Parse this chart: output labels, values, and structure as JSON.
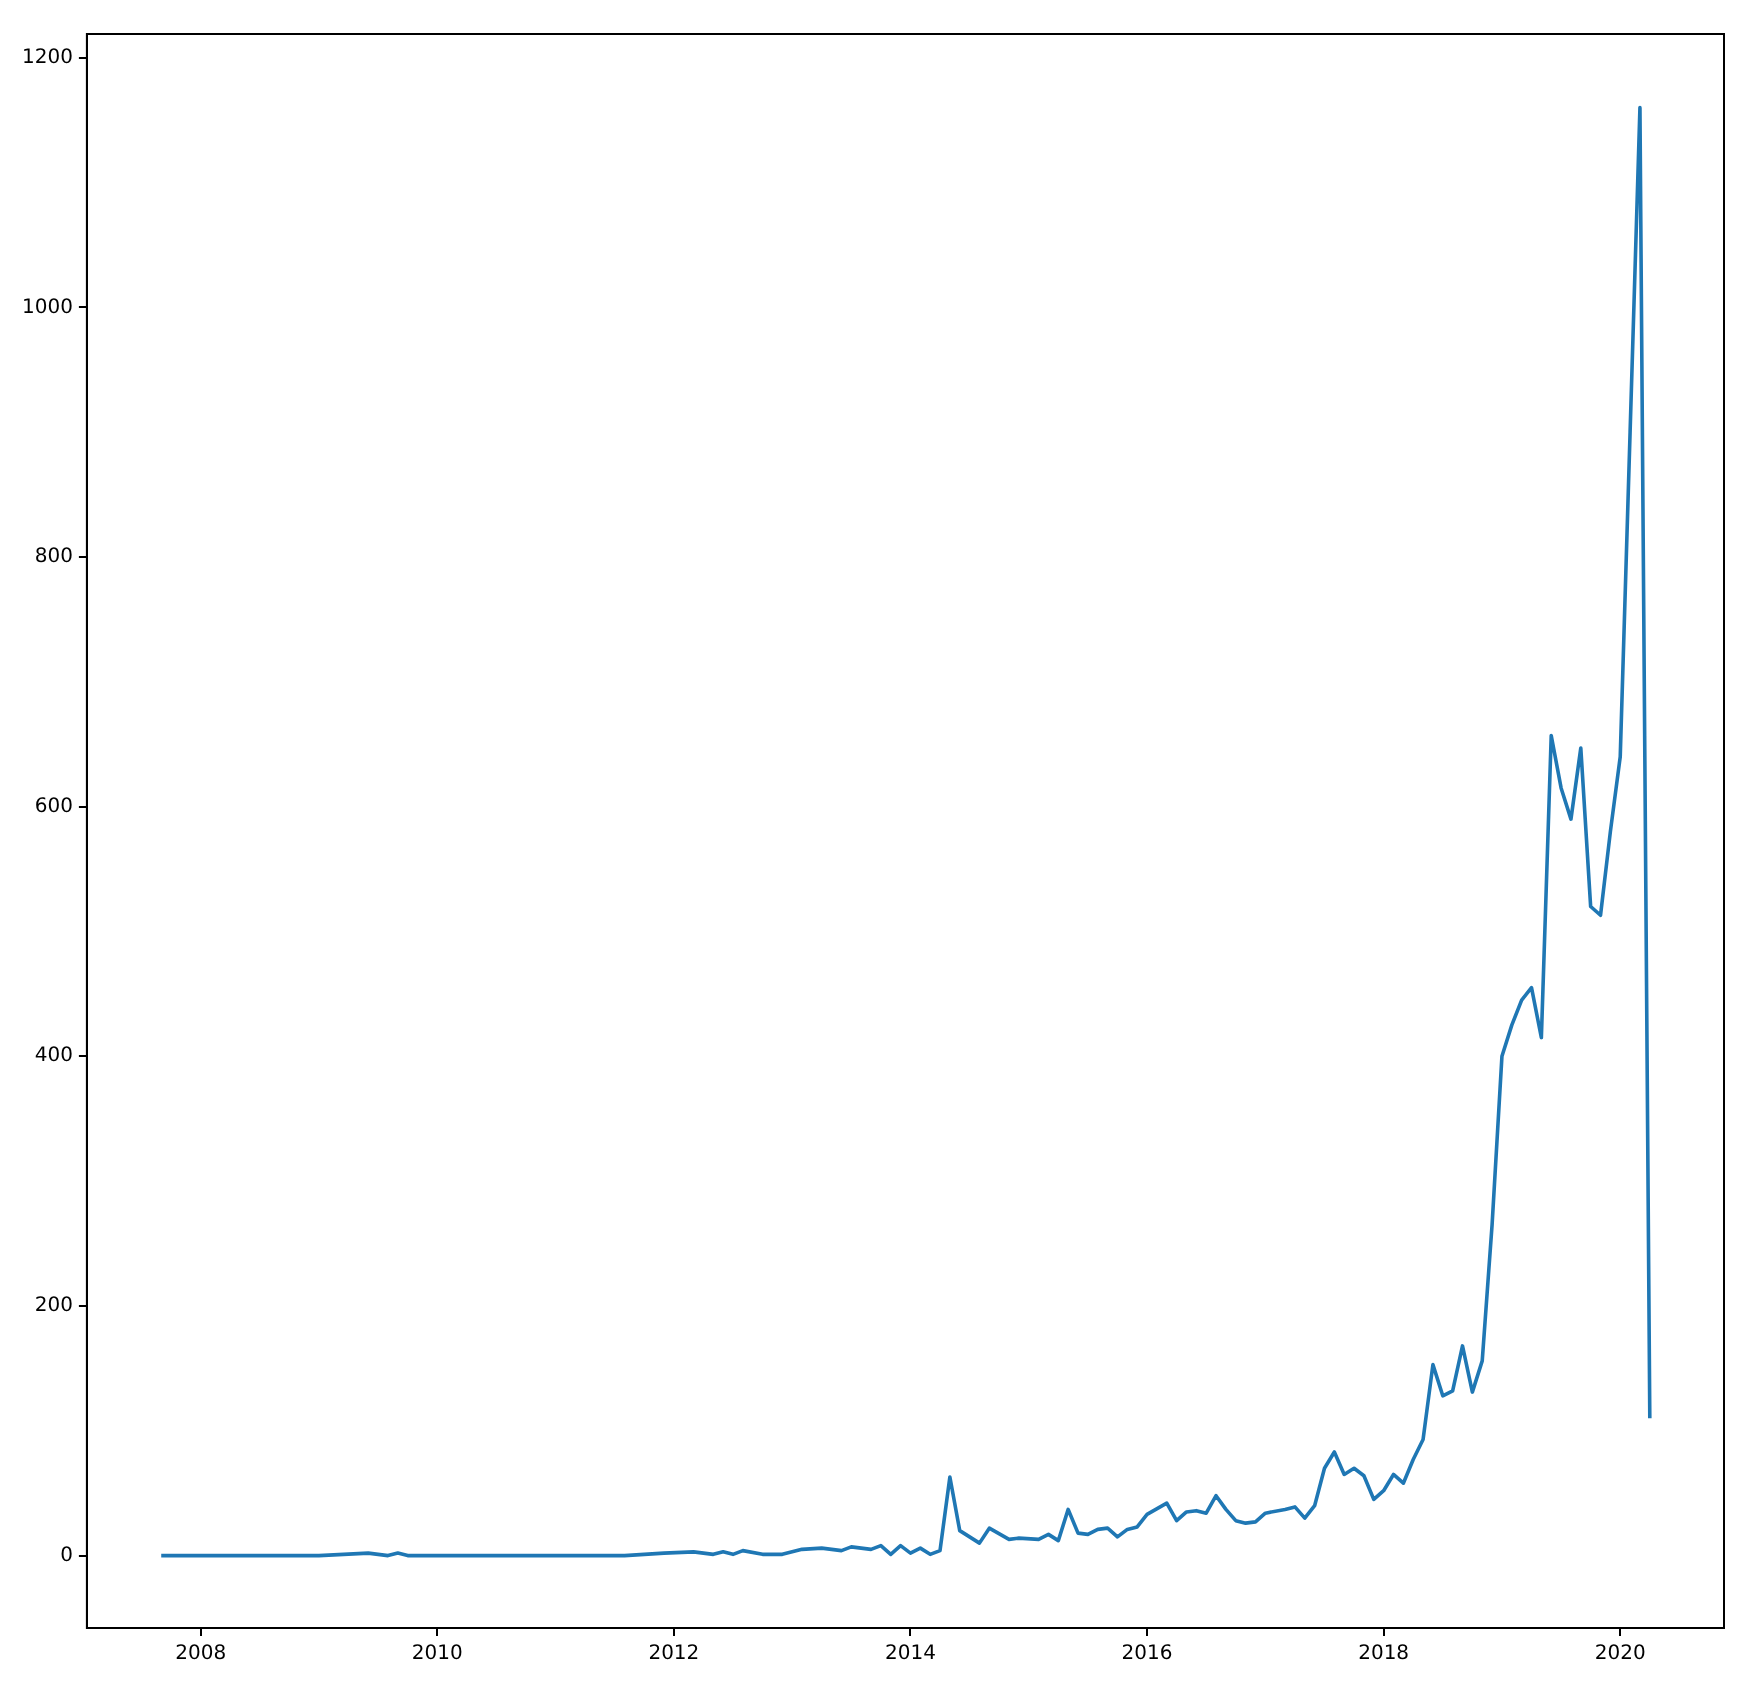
{
  "chart_data": {
    "type": "line",
    "x": [
      "2007-09",
      "2008-06",
      "2009-01",
      "2009-06",
      "2009-08",
      "2009-09",
      "2009-10",
      "2011-08",
      "2011-12",
      "2012-03",
      "2012-05",
      "2012-06",
      "2012-07",
      "2012-08",
      "2012-10",
      "2012-12",
      "2013-02",
      "2013-04",
      "2013-06",
      "2013-07",
      "2013-09",
      "2013-10",
      "2013-11",
      "2013-12",
      "2014-01",
      "2014-02",
      "2014-03",
      "2014-04",
      "2014-05",
      "2014-06",
      "2014-08",
      "2014-09",
      "2014-11",
      "2014-12",
      "2015-02",
      "2015-03",
      "2015-04",
      "2015-05",
      "2015-06",
      "2015-07",
      "2015-08",
      "2015-09",
      "2015-10",
      "2015-11",
      "2015-12",
      "2016-01",
      "2016-03",
      "2016-04",
      "2016-05",
      "2016-06",
      "2016-07",
      "2016-08",
      "2016-09",
      "2016-10",
      "2016-11",
      "2016-12",
      "2017-01",
      "2017-03",
      "2017-04",
      "2017-05",
      "2017-06",
      "2017-07",
      "2017-08",
      "2017-09",
      "2017-10",
      "2017-11",
      "2017-12",
      "2018-01",
      "2018-02",
      "2018-03",
      "2018-04",
      "2018-05",
      "2018-06",
      "2018-07",
      "2018-08",
      "2018-09",
      "2018-10",
      "2018-11",
      "2018-12",
      "2019-01",
      "2019-02",
      "2019-03",
      "2019-04",
      "2019-05",
      "2019-06",
      "2019-07",
      "2019-08",
      "2019-09",
      "2019-10",
      "2019-11",
      "2019-12",
      "2020-01",
      "2020-02",
      "2020-03",
      "2020-04"
    ],
    "series": [
      {
        "color": "#1f77b4",
        "values": [
          0,
          0,
          0,
          2,
          0,
          2,
          0,
          0,
          2,
          3,
          1,
          3,
          1,
          4,
          1,
          1,
          5,
          6,
          4,
          7,
          5,
          8,
          1,
          8,
          2,
          6,
          1,
          4,
          63,
          20,
          10,
          22,
          13,
          14,
          13,
          17,
          12,
          37,
          18,
          17,
          21,
          22,
          15,
          21,
          23,
          33,
          42,
          28,
          35,
          36,
          34,
          48,
          37,
          28,
          26,
          27,
          34,
          37,
          39,
          30,
          40,
          70,
          83,
          65,
          70,
          64,
          45,
          52,
          65,
          58,
          77,
          93,
          153,
          128,
          132,
          168,
          131,
          156,
          265,
          400,
          425,
          445,
          455,
          415,
          657,
          615,
          590,
          647,
          520,
          513,
          580,
          640,
          900,
          1160,
          110
        ]
      }
    ],
    "xlim": [
      "2007-01-15",
      "2020-11-17"
    ],
    "xticks": [
      "2008",
      "2010",
      "2012",
      "2014",
      "2016",
      "2018",
      "2020"
    ],
    "ylim": [
      -58,
      1219
    ],
    "yticks": [
      0,
      200,
      400,
      600,
      800,
      1000,
      1200
    ],
    "grid": false,
    "legend": false,
    "marker": "none",
    "line_style": "solid"
  }
}
